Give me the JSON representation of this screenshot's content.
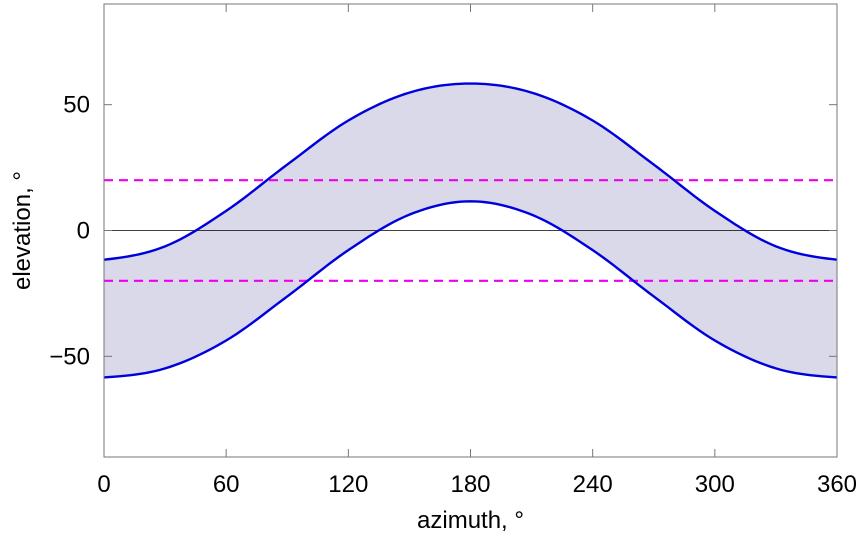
{
  "chart_data": {
    "type": "area",
    "title": "",
    "xlabel": "azimuth, °",
    "ylabel": "elevation, °",
    "xlim": [
      0,
      360
    ],
    "ylim": [
      -90,
      90
    ],
    "x_ticks": [
      0,
      60,
      120,
      180,
      240,
      300,
      360
    ],
    "x_tick_labels": [
      "0",
      "60",
      "120",
      "180",
      "240",
      "300",
      "360"
    ],
    "y_ticks": [
      -50,
      0,
      50
    ],
    "y_tick_labels": [
      "−50",
      "0",
      "50"
    ],
    "grid": false,
    "series": [
      {
        "role": "upper-boundary",
        "x": [
          0,
          30,
          60,
          90,
          120,
          150,
          180,
          210,
          240,
          270,
          300,
          330,
          360
        ],
        "y": [
          -11.6,
          -6.3,
          7.8,
          26.2,
          43.7,
          54.8,
          58.4,
          54.8,
          43.7,
          26.2,
          7.8,
          -6.3,
          -11.6
        ],
        "color": "#0000dd"
      },
      {
        "role": "lower-boundary",
        "x": [
          0,
          30,
          60,
          90,
          120,
          150,
          180,
          210,
          240,
          270,
          300,
          330,
          360
        ],
        "y": [
          -58.4,
          -54.8,
          -43.7,
          -26.2,
          -7.8,
          6.3,
          11.6,
          6.3,
          -7.8,
          -26.2,
          -43.7,
          -54.8,
          -58.4
        ],
        "color": "#0000dd"
      }
    ],
    "band_fill": "#d9d9ea",
    "reference_lines": [
      {
        "y": 20,
        "style": "dashed",
        "color": "#ee00ee"
      },
      {
        "y": -20,
        "style": "dashed",
        "color": "#ee00ee"
      },
      {
        "y": 0,
        "style": "solid",
        "color": "#000000"
      }
    ]
  }
}
